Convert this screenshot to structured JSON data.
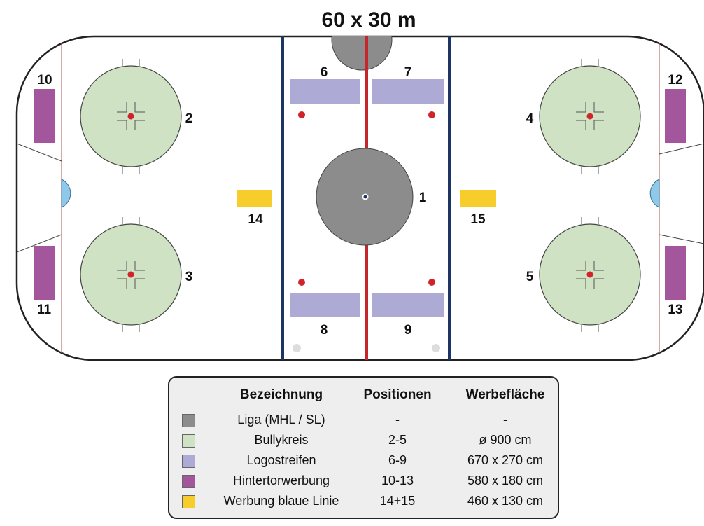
{
  "title": "60 x 30 m",
  "colors": {
    "liga": "#8c8c8c",
    "bullykreis": "#cfe3c4",
    "logostreifen": "#aeaad6",
    "hintertorwerbung": "#a4569c",
    "blaue_linie_werbung": "#f6cd2a",
    "blue_line": "#1c3565",
    "red_line": "#c4262b",
    "crease": "#8ec8ea",
    "faceoff_dot": "#d0242a"
  },
  "position_labels": {
    "p1": "1",
    "p2": "2",
    "p3": "3",
    "p4": "4",
    "p5": "5",
    "p6": "6",
    "p7": "7",
    "p8": "8",
    "p9": "9",
    "p10": "10",
    "p11": "11",
    "p12": "12",
    "p13": "13",
    "p14": "14",
    "p15": "15"
  },
  "legend": {
    "headers": {
      "name": "Bezeichnung",
      "positions": "Positionen",
      "area": "Werbefläche"
    },
    "rows": [
      {
        "color": "#8c8c8c",
        "name": "Liga (MHL / SL)",
        "positions": "-",
        "area": "-"
      },
      {
        "color": "#cfe3c4",
        "name": "Bullykreis",
        "positions": "2-5",
        "area": "ø 900 cm"
      },
      {
        "color": "#aeaad6",
        "name": "Logostreifen",
        "positions": "6-9",
        "area": "670 x 270 cm"
      },
      {
        "color": "#a4569c",
        "name": "Hintertorwerbung",
        "positions": "10-13",
        "area": "580 x 180 cm"
      },
      {
        "color": "#f6cd2a",
        "name": "Werbung blaue Linie",
        "positions": "14+15",
        "area": "460 x 130 cm"
      }
    ]
  }
}
